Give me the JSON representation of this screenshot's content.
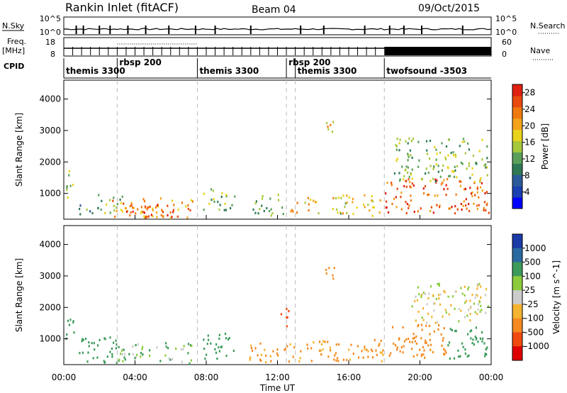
{
  "header": {
    "station": "Rankin Inlet (fitACF)",
    "beam": "Beam 04",
    "date": "09/Oct/2015"
  },
  "strip_labels": {
    "nsky": "N.Sky",
    "nsky_ticks": [
      "10^5",
      "10^0"
    ],
    "nsearch": "N.Search",
    "nsearch_ticks": [
      "10^5",
      "10^0"
    ],
    "freq": "Freq.",
    "freq_unit": "[MHz]",
    "freq_ticks": [
      "18",
      "8"
    ],
    "nave": "Nave",
    "nave_ticks": [
      "60",
      "0"
    ],
    "cpid": "CPID"
  },
  "cpid_segments": [
    {
      "label": "themis 3300",
      "start": 0.0
    },
    {
      "label": "rbsp 200",
      "start": 3.0
    },
    {
      "label": "themis 3300",
      "start": 7.5
    },
    {
      "label": "rbsp 200",
      "start": 12.5
    },
    {
      "label": "themis 3300",
      "start": 13.0
    },
    {
      "label": "twofsound -3503",
      "start": 18.0
    }
  ],
  "colors": {
    "power": [
      "#0000ff",
      "#1a3fb0",
      "#2a5a9a",
      "#2f7a55",
      "#5aa05a",
      "#a6c83c",
      "#e8d21a",
      "#f3a21a",
      "#f07a10",
      "#e84a10",
      "#e02010"
    ],
    "velocity": [
      "#e00000",
      "#f04a10",
      "#f58a20",
      "#f5b430",
      "#cccccc",
      "#8ccc3c",
      "#3c9a5a",
      "#2a6aa0",
      "#1a3aa8"
    ]
  },
  "chart_data": [
    {
      "type": "heatmap",
      "title": "Power",
      "x_range_hours": [
        0,
        24
      ],
      "ylabel": "Slant Range [km]",
      "y_ticks": [
        1000,
        2000,
        3000,
        4000
      ],
      "ylim": [
        180,
        4600
      ],
      "colorbar": {
        "label": "Power [dB]",
        "ticks": [
          4,
          8,
          12,
          16,
          20,
          24,
          28
        ],
        "range": [
          0,
          30
        ]
      },
      "dashed_vlines": [
        3.0,
        7.5,
        12.5,
        13.0,
        18.0
      ],
      "regions": [
        {
          "t0": 0.1,
          "t1": 0.6,
          "r0": 900,
          "r1": 1800,
          "level": 16
        },
        {
          "t0": 0.8,
          "t1": 2.0,
          "r0": 300,
          "r1": 700,
          "level": 10
        },
        {
          "t0": 1.8,
          "t1": 3.3,
          "r0": 400,
          "r1": 1000,
          "level": 12
        },
        {
          "t0": 2.7,
          "t1": 7.3,
          "r0": 250,
          "r1": 900,
          "level": 22
        },
        {
          "t0": 3.5,
          "t1": 6.8,
          "r0": 250,
          "r1": 700,
          "level": 27
        },
        {
          "t0": 7.8,
          "t1": 9.6,
          "r0": 500,
          "r1": 1200,
          "level": 14
        },
        {
          "t0": 10.6,
          "t1": 12.3,
          "r0": 300,
          "r1": 1000,
          "level": 12
        },
        {
          "t0": 12.6,
          "t1": 14.3,
          "r0": 400,
          "r1": 900,
          "level": 20
        },
        {
          "t0": 14.6,
          "t1": 15.2,
          "r0": 2900,
          "r1": 3500,
          "level": 20
        },
        {
          "t0": 15.0,
          "t1": 17.9,
          "r0": 300,
          "r1": 1000,
          "level": 18
        },
        {
          "t0": 18.0,
          "t1": 23.9,
          "r0": 400,
          "r1": 1500,
          "level": 26
        },
        {
          "t0": 18.5,
          "t1": 23.8,
          "r0": 1400,
          "r1": 2800,
          "level": 14
        }
      ]
    },
    {
      "type": "heatmap",
      "title": "Velocity",
      "x_range_hours": [
        0,
        24
      ],
      "xlabel": "Time UT",
      "x_ticks": [
        "00:00",
        "04:00",
        "08:00",
        "12:00",
        "16:00",
        "20:00",
        "00:00"
      ],
      "ylabel": "Slant Range [km]",
      "y_ticks": [
        1000,
        2000,
        3000,
        4000
      ],
      "ylim": [
        180,
        4600
      ],
      "colorbar": {
        "label": "Velocity [m s^-1]",
        "ticks": [
          1000,
          500,
          100,
          25,
          -25,
          -100,
          -500,
          -1000
        ]
      },
      "dashed_vlines": [
        3.0,
        7.5,
        12.5,
        13.0,
        18.0
      ],
      "regions": [
        {
          "t0": 0.1,
          "t1": 0.6,
          "r0": 900,
          "r1": 1800,
          "level": 300
        },
        {
          "t0": 0.8,
          "t1": 3.2,
          "r0": 250,
          "r1": 1100,
          "level": 200
        },
        {
          "t0": 3.0,
          "t1": 7.3,
          "r0": 250,
          "r1": 900,
          "level": 80
        },
        {
          "t0": 7.8,
          "t1": 9.6,
          "r0": 400,
          "r1": 1200,
          "level": 300
        },
        {
          "t0": 10.4,
          "t1": 12.6,
          "r0": 250,
          "r1": 900,
          "level": -150
        },
        {
          "t0": 12.0,
          "t1": 12.6,
          "r0": 1400,
          "r1": 2000,
          "level": -600
        },
        {
          "t0": 12.6,
          "t1": 17.9,
          "r0": 300,
          "r1": 1000,
          "level": -150
        },
        {
          "t0": 14.6,
          "t1": 15.2,
          "r0": 2900,
          "r1": 3500,
          "level": -200
        },
        {
          "t0": 18.0,
          "t1": 21.5,
          "r0": 400,
          "r1": 1500,
          "level": -200
        },
        {
          "t0": 21.5,
          "t1": 23.9,
          "r0": 400,
          "r1": 1400,
          "level": 300
        },
        {
          "t0": 19.5,
          "t1": 23.8,
          "r0": 1500,
          "r1": 2800,
          "level": 0
        }
      ]
    }
  ]
}
